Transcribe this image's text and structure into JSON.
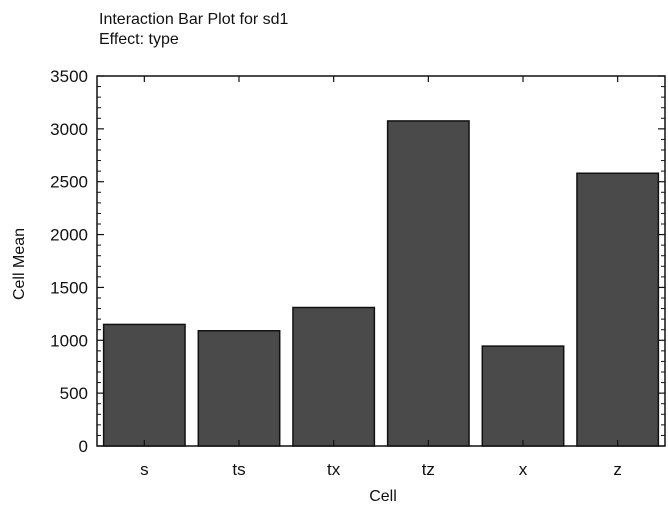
{
  "chart_data": {
    "type": "bar",
    "title": "Interaction Bar Plot for sd1",
    "subtitle": "Effect: type",
    "xlabel": "Cell",
    "ylabel": "Cell Mean",
    "categories": [
      "s",
      "ts",
      "tx",
      "tz",
      "x",
      "z"
    ],
    "values": [
      1150,
      1090,
      1310,
      3075,
      945,
      2580
    ],
    "ylim": [
      0,
      3500
    ],
    "yticks": [
      0,
      500,
      1000,
      1500,
      2000,
      2500,
      3000,
      3500
    ],
    "grid": false,
    "legend": "none",
    "bar_color": "#4a4a4a",
    "bar_edge_color": "#111111"
  }
}
